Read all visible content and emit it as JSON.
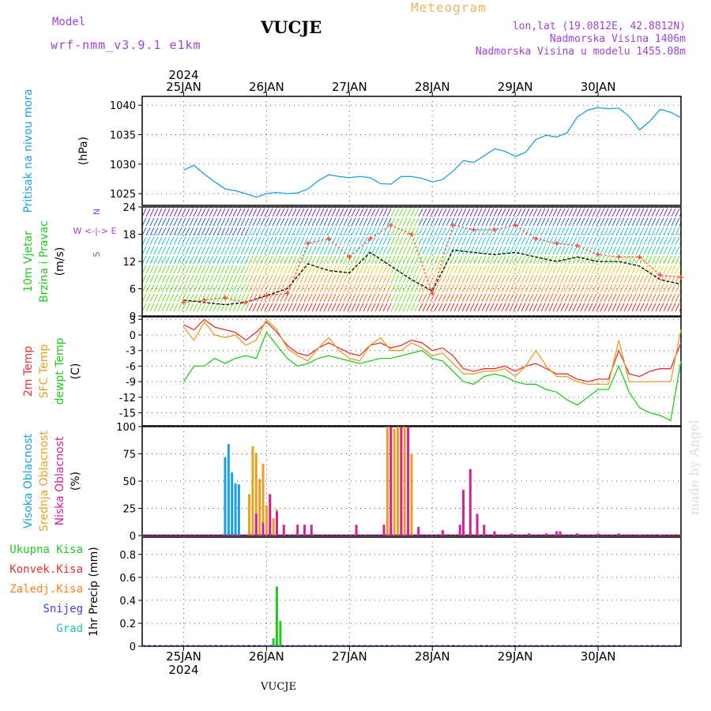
{
  "header": {
    "model_label": "Model",
    "model_name": "wrf-nmm_v3.9.1 e1km",
    "station": "VUCJE",
    "title": "Meteogram",
    "coords": "lon,lat (19.0812E, 42.8812N)",
    "altitude": "Nadmorska Visina 1406m",
    "model_altitude": "Nadmorska Visina u modelu 1455.08m",
    "watermark": "made by Angel",
    "footer_station": "VUCJE"
  },
  "colors": {
    "pressure": "#1aa0e8",
    "wind_speed": "#000000",
    "gust": "#ff3a20",
    "temp_2m": "#e83030",
    "temp_sfc": "#e0a020",
    "dewpoint": "#20cc20",
    "cloud_high": "#1aa0e8",
    "cloud_mid": "#e8a020",
    "cloud_low": "#d0209a",
    "precip_total": "#20cc20",
    "precip_conv": "#e83030",
    "precip_frozen": "#ff8020",
    "snow": "#4040e0",
    "hail": "#20c0c0",
    "header_purple": "#a040e0",
    "header_orange": "#f0b060"
  },
  "chart_data": [
    {
      "type": "line",
      "panel": "pressure",
      "ylabel_lines": [
        "Pritisak na nivou mora",
        "(hPa)"
      ],
      "y_ticks": [
        1025,
        1030,
        1035,
        1040
      ],
      "ylim": [
        1023,
        1041.5
      ],
      "x": [
        0,
        3,
        6,
        9,
        12,
        15,
        18,
        21,
        24,
        27,
        30,
        33,
        36,
        39,
        42,
        45,
        48,
        51,
        54,
        57,
        60,
        63,
        66,
        69,
        72,
        75,
        78,
        81,
        84,
        87,
        90,
        93,
        96,
        99,
        102,
        105,
        108,
        111,
        114,
        117,
        120,
        123,
        126,
        129,
        132,
        135,
        138,
        141,
        144
      ],
      "series": [
        {
          "name": "",
          "values": [
            1029.0,
            1029.8,
            1028.3,
            1027.0,
            1025.8,
            1025.5,
            1025.0,
            1024.4,
            1025.0,
            1025.2,
            1025.0,
            1025.1,
            1025.8,
            1027.2,
            1028.2,
            1027.9,
            1027.7,
            1027.9,
            1027.7,
            1026.7,
            1026.6,
            1027.9,
            1027.9,
            1027.6,
            1027.0,
            1027.4,
            1028.8,
            1030.6,
            1030.3,
            1031.4,
            1032.6,
            1032.2,
            1031.3,
            1032.0,
            1034.2,
            1034.9,
            1034.6,
            1035.3,
            1038.0,
            1039.2,
            1039.6,
            1039.4,
            1039.5,
            1038.1,
            1035.8,
            1037.3,
            1039.3,
            1038.8,
            1037.9
          ]
        }
      ]
    },
    {
      "type": "line",
      "panel": "wind",
      "ylabel_lines": [
        "10m Vjetar",
        "Brzina i Pravac",
        "(m/s)"
      ],
      "direction_key": [
        "N",
        "W <-|-> E",
        "S"
      ],
      "y_ticks": [
        0,
        6,
        12,
        18,
        24
      ],
      "ylim": [
        0,
        24
      ],
      "x": [
        0,
        6,
        12,
        18,
        24,
        30,
        36,
        42,
        48,
        54,
        60,
        66,
        72,
        78,
        84,
        90,
        96,
        102,
        108,
        114,
        120,
        126,
        132,
        138,
        144
      ],
      "series": [
        {
          "name": "speed",
          "values": [
            3.5,
            3.0,
            2.5,
            3.0,
            4.5,
            6.0,
            11.5,
            10.0,
            9.5,
            14.0,
            11.0,
            8.0,
            5.5,
            14.5,
            14.0,
            13.5,
            14.0,
            13.0,
            12.0,
            13.0,
            12.0,
            12.0,
            11.0,
            8.0,
            7.0
          ]
        },
        {
          "name": "gust",
          "values": [
            3.0,
            3.5,
            4.0,
            3.0,
            4.5,
            5.0,
            16.0,
            17.0,
            13.0,
            17.0,
            20.0,
            18.0,
            5.0,
            20.0,
            19.0,
            19.0,
            20.0,
            17.0,
            16.0,
            15.5,
            13.5,
            13.0,
            13.0,
            9.0,
            8.5
          ]
        }
      ]
    },
    {
      "type": "line",
      "panel": "temperature",
      "ylabel_lines": [
        "2m Temp",
        "SFC Temp",
        "dewpt Temp",
        "(C)"
      ],
      "y_ticks": [
        -15,
        -12,
        -9,
        -6,
        -3,
        0,
        3
      ],
      "ylim": [
        -17.5,
        3.5
      ],
      "x": [
        0,
        3,
        6,
        9,
        12,
        15,
        18,
        21,
        24,
        27,
        30,
        33,
        36,
        39,
        42,
        45,
        48,
        51,
        54,
        57,
        60,
        63,
        66,
        69,
        72,
        75,
        78,
        81,
        84,
        87,
        90,
        93,
        96,
        99,
        102,
        105,
        108,
        111,
        114,
        117,
        120,
        123,
        126,
        129,
        132,
        135,
        138,
        141,
        144
      ],
      "series": [
        {
          "name": "2m",
          "values": [
            2.0,
            1.0,
            3.0,
            1.5,
            1.0,
            0.5,
            -1.0,
            0.5,
            2.5,
            0.5,
            -2.0,
            -3.5,
            -4.0,
            -2.5,
            -1.5,
            -2.5,
            -3.5,
            -4.0,
            -2.0,
            -1.5,
            -2.5,
            -2.0,
            -1.0,
            -1.5,
            -3.0,
            -2.5,
            -4.0,
            -6.5,
            -7.0,
            -6.5,
            -6.5,
            -6.0,
            -7.0,
            -6.0,
            -5.5,
            -6.5,
            -7.5,
            -7.5,
            -8.5,
            -9.0,
            -8.5,
            -8.5,
            -3.0,
            -7.5,
            -8.0,
            -7.0,
            -6.5,
            -6.5,
            -1.5
          ]
        },
        {
          "name": "sfc",
          "values": [
            1.5,
            -1.0,
            2.5,
            0.0,
            -0.5,
            0.0,
            -2.0,
            -1.0,
            3.0,
            1.0,
            -2.5,
            -4.0,
            -5.0,
            -2.5,
            -0.5,
            -3.0,
            -4.5,
            -5.0,
            -2.0,
            -0.5,
            -3.0,
            -3.0,
            -1.5,
            -2.5,
            -4.0,
            -3.5,
            -5.5,
            -7.5,
            -7.5,
            -7.0,
            -7.0,
            -6.5,
            -8.0,
            -6.0,
            -3.0,
            -6.0,
            -8.0,
            -8.0,
            -9.0,
            -9.5,
            -9.5,
            -9.5,
            -1.0,
            -9.0,
            -9.0,
            -9.0,
            -9.0,
            -9.0,
            1.0
          ]
        },
        {
          "name": "dewpt",
          "values": [
            -9.0,
            -6.0,
            -6.0,
            -4.5,
            -5.5,
            -4.5,
            -4.0,
            -4.5,
            0.5,
            -2.0,
            -4.5,
            -6.0,
            -5.5,
            -4.5,
            -4.0,
            -4.5,
            -5.0,
            -5.5,
            -5.0,
            -4.5,
            -4.5,
            -4.0,
            -3.5,
            -3.0,
            -4.5,
            -5.0,
            -7.0,
            -9.0,
            -9.5,
            -8.0,
            -7.5,
            -8.0,
            -9.0,
            -9.5,
            -9.5,
            -10.5,
            -11.0,
            -12.5,
            -13.5,
            -12.0,
            -10.5,
            -10.5,
            -6.0,
            -11.0,
            -14.0,
            -15.0,
            -15.5,
            -16.5,
            -5.0
          ]
        }
      ]
    },
    {
      "type": "bar",
      "panel": "clouds",
      "ylabel_lines": [
        "Visoka Oblacnost",
        "Srednja Oblacnost",
        "Niska Oblacnost",
        "(%)"
      ],
      "y_ticks": [
        0,
        25,
        50,
        75,
        100
      ],
      "ylim": [
        0,
        100
      ],
      "series": [
        {
          "name": "high",
          "x": [
            12,
            13,
            14,
            15,
            16,
            25
          ],
          "values": [
            72,
            84,
            58,
            48,
            47,
            2
          ]
        },
        {
          "name": "mid",
          "x": [
            19,
            20,
            21,
            22,
            23,
            24,
            25,
            26,
            27,
            58,
            59,
            60,
            61,
            62,
            63,
            64,
            65,
            66
          ],
          "values": [
            38,
            82,
            76,
            52,
            66,
            28,
            38,
            16,
            24,
            8,
            100,
            100,
            98,
            100,
            100,
            100,
            100,
            75
          ]
        },
        {
          "name": "low",
          "x": [
            21,
            23,
            25,
            27,
            29,
            33,
            35,
            37,
            50,
            58,
            60,
            63,
            65,
            68,
            75,
            80,
            81,
            83,
            85,
            87,
            90,
            95,
            100,
            105,
            108,
            109,
            114,
            120,
            126,
            132,
            138,
            144
          ],
          "values": [
            20,
            12,
            38,
            22,
            10,
            10,
            10,
            10,
            10,
            10,
            100,
            100,
            100,
            8,
            5,
            10,
            42,
            61,
            20,
            10,
            4,
            2,
            2,
            2,
            4,
            4,
            2,
            2,
            2,
            1,
            1,
            1
          ]
        }
      ]
    },
    {
      "type": "bar",
      "panel": "precip",
      "ylabel_lines": [
        "1hr Precip (mm)"
      ],
      "legend": [
        "Ukupna Kisa",
        "Konvek.Kisa",
        "Zaledj.Kisa",
        "Snijeg",
        "Grad"
      ],
      "y_ticks": [
        0,
        0.2,
        0.4,
        0.6,
        0.8
      ],
      "ylim": [
        0,
        0.95
      ],
      "series": [
        {
          "name": "total",
          "x": [
            26,
            27,
            28
          ],
          "values": [
            0.07,
            0.52,
            0.22
          ]
        },
        {
          "name": "snow",
          "x": [
            25
          ],
          "values": [
            0.01
          ]
        }
      ]
    }
  ],
  "x_axis": {
    "start": "2024-01-24 12:00",
    "hours": 144,
    "tick_labels": [
      "25JAN",
      "26JAN",
      "27JAN",
      "28JAN",
      "29JAN",
      "30JAN"
    ],
    "year_label": "2024"
  }
}
